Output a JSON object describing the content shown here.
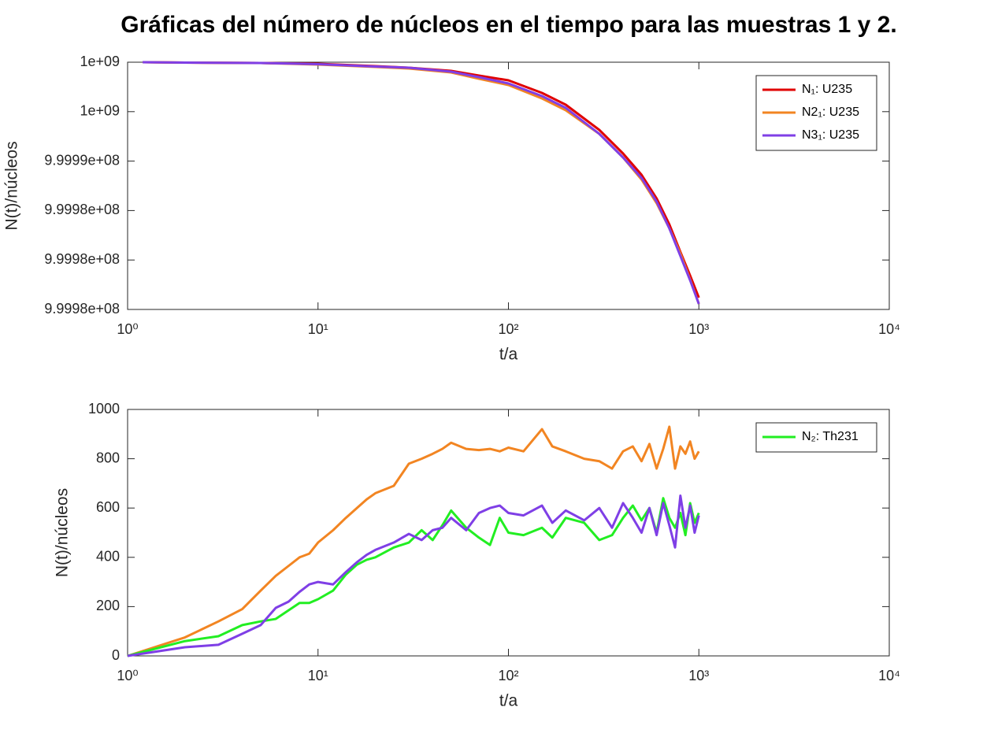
{
  "chart_data": [
    {
      "type": "line",
      "title": "Gráficas del número de núcleos en el tiempo para las muestras 1 y 2.",
      "xlabel": "t/a",
      "ylabel": "N(t)/núcleos",
      "xscale": "log",
      "grid": false,
      "legend": "top-right",
      "xlim": [
        1,
        10000
      ],
      "xticks": [
        {
          "value": 1,
          "label": "10⁰"
        },
        {
          "value": 10,
          "label": "10¹"
        },
        {
          "value": 100,
          "label": "10²"
        },
        {
          "value": 1000,
          "label": "10³"
        },
        {
          "value": 10000,
          "label": "10⁴"
        }
      ],
      "ylim": [
        999975000,
        1000000000
      ],
      "yticks": [
        {
          "value": 999975000,
          "label": "9.9998e+08"
        },
        {
          "value": 999980000,
          "label": "9.9998e+08"
        },
        {
          "value": 999985000,
          "label": "9.9998e+08"
        },
        {
          "value": 999990000,
          "label": "9.9999e+08"
        },
        {
          "value": 999995000,
          "label": "1e+09"
        },
        {
          "value": 1000000000,
          "label": "1e+09"
        }
      ],
      "x": [
        1.2,
        2,
        5,
        10,
        20,
        30,
        50,
        70,
        100,
        150,
        200,
        300,
        400,
        500,
        600,
        700,
        800,
        900,
        1000
      ],
      "series": [
        {
          "name": "N₁: U235",
          "color": "#e00000",
          "values": [
            1000000000,
            999999960,
            999999920,
            999999841,
            999999602,
            999999443,
            999999124,
            999998646,
            999998169,
            999996895,
            999995701,
            999993153,
            999990764,
            999988614,
            999986226,
            999983598,
            999980812,
            999978423,
            999976194
          ]
        },
        {
          "name": "N2₁: U235",
          "color": "#f28522",
          "values": [
            1000000000,
            999999960,
            999999920,
            999999761,
            999999522,
            999999363,
            999998965,
            999998328,
            999997691,
            999996337,
            999995143,
            999992755,
            999990366,
            999988137,
            999985748,
            999983200,
            999980653,
            999978025,
            999975557
          ]
        },
        {
          "name": "N3₁: U235",
          "color": "#7f3fe6",
          "values": [
            1000000000,
            999999960,
            999999920,
            999999801,
            999999562,
            999999443,
            999999045,
            999998487,
            999997850,
            999996576,
            999995382,
            999992755,
            999990366,
            999988296,
            999985907,
            999983200,
            999980413,
            999977945,
            999975557
          ]
        }
      ]
    },
    {
      "type": "line",
      "xlabel": "t/a",
      "ylabel": "N(t)/núcleos",
      "xscale": "log",
      "grid": false,
      "legend": "top-right",
      "xlim": [
        1,
        10000
      ],
      "xticks": [
        {
          "value": 1,
          "label": "10⁰"
        },
        {
          "value": 10,
          "label": "10¹"
        },
        {
          "value": 100,
          "label": "10²"
        },
        {
          "value": 1000,
          "label": "10³"
        },
        {
          "value": 10000,
          "label": "10⁴"
        }
      ],
      "ylim": [
        0,
        1000
      ],
      "yticks": [
        0,
        200,
        400,
        600,
        800,
        1000
      ],
      "x": [
        1,
        2,
        3,
        4,
        5,
        6,
        7,
        8,
        9,
        10,
        12,
        14,
        16,
        18,
        20,
        25,
        30,
        35,
        40,
        45,
        50,
        60,
        70,
        80,
        90,
        100,
        120,
        150,
        170,
        200,
        250,
        300,
        350,
        400,
        450,
        500,
        550,
        600,
        650,
        700,
        750,
        800,
        850,
        900,
        950,
        1000
      ],
      "series": [
        {
          "color": "#f28522",
          "values": [
            0,
            75,
            140,
            190,
            265,
            325,
            365,
            400,
            415,
            460,
            510,
            560,
            600,
            635,
            660,
            690,
            780,
            800,
            820,
            840,
            865,
            840,
            835,
            840,
            830,
            845,
            830,
            920,
            850,
            830,
            800,
            790,
            760,
            830,
            850,
            790,
            860,
            760,
            840,
            930,
            760,
            850,
            820,
            870,
            800,
            830
          ]
        },
        {
          "name": "N₂: Th231",
          "color": "#22ee22",
          "values": [
            0,
            60,
            80,
            125,
            140,
            150,
            185,
            215,
            215,
            230,
            265,
            330,
            370,
            390,
            400,
            440,
            460,
            510,
            470,
            530,
            590,
            520,
            480,
            450,
            560,
            500,
            490,
            520,
            480,
            560,
            540,
            470,
            490,
            560,
            610,
            550,
            600,
            500,
            640,
            560,
            520,
            580,
            490,
            620,
            540,
            580
          ]
        },
        {
          "color": "#7f3fe6",
          "values": [
            0,
            35,
            45,
            90,
            125,
            195,
            220,
            260,
            290,
            300,
            290,
            340,
            380,
            410,
            430,
            460,
            495,
            470,
            510,
            520,
            560,
            510,
            580,
            600,
            610,
            580,
            570,
            610,
            540,
            590,
            550,
            600,
            520,
            620,
            560,
            500,
            600,
            490,
            620,
            530,
            440,
            650,
            520,
            610,
            500,
            570
          ]
        }
      ]
    }
  ]
}
